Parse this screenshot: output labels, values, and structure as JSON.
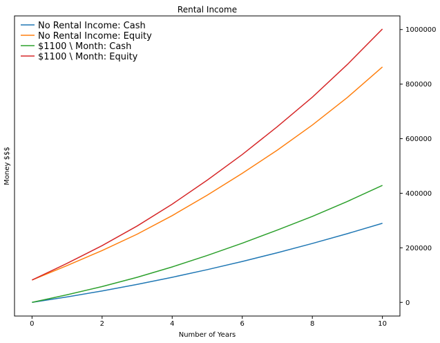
{
  "chart_data": {
    "type": "line",
    "title": "Rental Income",
    "xlabel": "Number of Years",
    "ylabel": "Money $$$",
    "xlim": [
      -0.5,
      10.5
    ],
    "ylim": [
      -50000,
      1050000
    ],
    "y_axis_side": "right",
    "grid": false,
    "legend_position": "top-left",
    "x_ticks": [
      0,
      2,
      4,
      6,
      8,
      10
    ],
    "y_ticks": [
      0,
      200000,
      400000,
      600000,
      800000,
      1000000
    ],
    "x": [
      0,
      1,
      2,
      3,
      4,
      5,
      6,
      7,
      8,
      9,
      10
    ],
    "series": [
      {
        "name": "No Rental Income: Cash",
        "color": "#1f77b4",
        "values": [
          0,
          20000,
          42000,
          66000,
          92000,
          120000,
          150000,
          182000,
          216000,
          252000,
          290000
        ]
      },
      {
        "name": "No Rental Income: Equity",
        "color": "#ff7f0e",
        "values": [
          82000,
          135000,
          190000,
          250000,
          318000,
          393000,
          473000,
          558000,
          650000,
          751000,
          863000
        ]
      },
      {
        "name": "$1100 \\ Month: Cash",
        "color": "#2ca02c",
        "values": [
          0,
          28000,
          58000,
          92000,
          130000,
          172000,
          217000,
          265000,
          315000,
          370000,
          429000
        ]
      },
      {
        "name": "$1100 \\ Month: Equity",
        "color": "#d62728",
        "values": [
          82000,
          143000,
          208000,
          280000,
          360000,
          448000,
          542000,
          644000,
          752000,
          872000,
          1002000
        ]
      }
    ]
  }
}
